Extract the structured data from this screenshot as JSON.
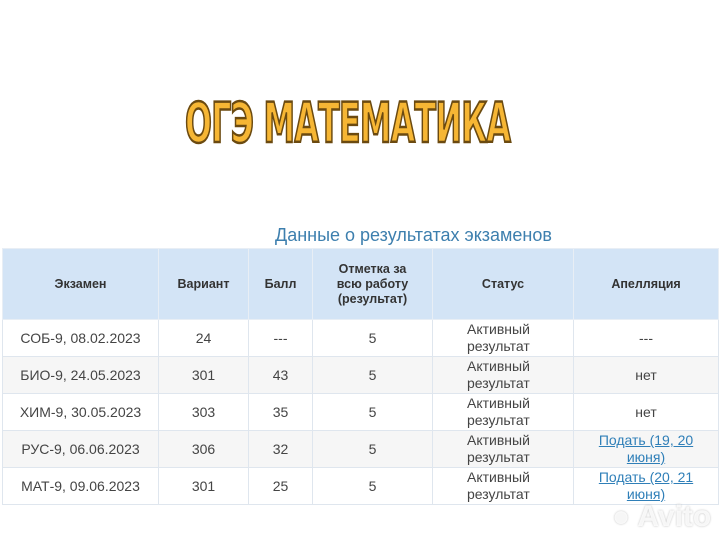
{
  "headline": "ОГЭ МАТЕМАТИКА",
  "table_title": "Данные о результатах экзаменов",
  "columns": [
    "Экзамен",
    "Вариант",
    "Балл",
    "Отметка за всю работу (результат)",
    "Статус",
    "Апелляция"
  ],
  "rows": [
    {
      "exam": "СОБ-9, 08.02.2023",
      "variant": "24",
      "score": "---",
      "mark": "5",
      "status": "Активный результат",
      "appeal": "---",
      "appeal_link": false
    },
    {
      "exam": "БИО-9, 24.05.2023",
      "variant": "301",
      "score": "43",
      "mark": "5",
      "status": "Активный результат",
      "appeal": "нет",
      "appeal_link": false
    },
    {
      "exam": "ХИМ-9, 30.05.2023",
      "variant": "303",
      "score": "35",
      "mark": "5",
      "status": "Активный результат",
      "appeal": "нет",
      "appeal_link": false
    },
    {
      "exam": "РУС-9, 06.06.2023",
      "variant": "306",
      "score": "32",
      "mark": "5",
      "status": "Активный результат",
      "appeal": "Подать (19, 20 июня)",
      "appeal_link": true
    },
    {
      "exam": "МАТ-9, 09.06.2023",
      "variant": "301",
      "score": "25",
      "mark": "5",
      "status": "Активный результат",
      "appeal": "Подать (20, 21 июня)",
      "appeal_link": true
    }
  ],
  "watermark": "Avito",
  "colors": {
    "header_bg": "#d3e4f6",
    "title": "#3d7fae",
    "headline": "#f6b634",
    "link": "#2f7fb8"
  }
}
